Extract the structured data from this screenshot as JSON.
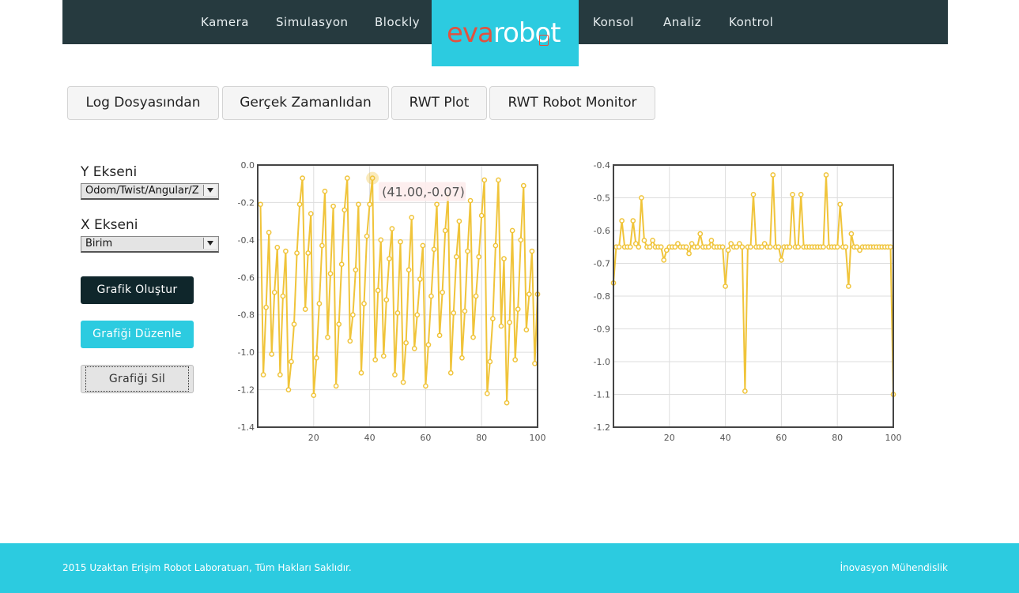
{
  "nav": {
    "items": [
      {
        "label": "Kamera"
      },
      {
        "label": "Simulasyon"
      },
      {
        "label": "Blockly"
      },
      {
        "label": "Konsol"
      },
      {
        "label": "Analiz"
      },
      {
        "label": "Kontrol"
      }
    ],
    "logo": {
      "part1": "eva",
      "part2": "robot"
    }
  },
  "tabs": [
    {
      "label": "Log Dosyasından"
    },
    {
      "label": "Gerçek Zamanlıdan"
    },
    {
      "label": "RWT Plot"
    },
    {
      "label": "RWT Robot Monitor"
    }
  ],
  "sidebar": {
    "y_label": "Y Ekseni",
    "y_value": "Odom/Twist/Angular/Z",
    "x_label": "X Ekseni",
    "x_value": "Birim",
    "create_btn": "Grafik Oluştur",
    "edit_btn": "Grafiği Düzenle",
    "delete_btn": "Grafiği Sil"
  },
  "colors": {
    "accent": "#2ccbe0",
    "nav_bg": "#263a3f",
    "series": "#f0c43a"
  },
  "chart_data": [
    {
      "type": "line",
      "xlim": [
        0,
        100
      ],
      "ylim": [
        -1.4,
        0.0
      ],
      "xticks": [
        20,
        40,
        60,
        80,
        100
      ],
      "yticks": [
        0.0,
        -0.2,
        -0.4,
        -0.6,
        -0.8,
        -1.0,
        -1.2,
        -1.4
      ],
      "grid": true,
      "tooltip": {
        "text": "(41.00,-0.07)",
        "x": 41,
        "y": -0.07
      },
      "x": [
        1,
        2,
        3,
        4,
        5,
        6,
        7,
        8,
        9,
        10,
        11,
        12,
        13,
        14,
        15,
        16,
        17,
        18,
        19,
        20,
        21,
        22,
        23,
        24,
        25,
        26,
        27,
        28,
        29,
        30,
        31,
        32,
        33,
        34,
        35,
        36,
        37,
        38,
        39,
        40,
        41,
        42,
        43,
        44,
        45,
        46,
        47,
        48,
        49,
        50,
        51,
        52,
        53,
        54,
        55,
        56,
        57,
        58,
        59,
        60,
        61,
        62,
        63,
        64,
        65,
        66,
        67,
        68,
        69,
        70,
        71,
        72,
        73,
        74,
        75,
        76,
        77,
        78,
        79,
        80,
        81,
        82,
        83,
        84,
        85,
        86,
        87,
        88,
        89,
        90,
        91,
        92,
        93,
        94,
        95,
        96,
        97,
        98,
        99,
        100
      ],
      "values": [
        -0.21,
        -1.12,
        -0.76,
        -0.36,
        -1.01,
        -0.68,
        -0.44,
        -1.12,
        -0.7,
        -0.46,
        -1.2,
        -1.05,
        -0.85,
        -0.47,
        -0.21,
        -0.07,
        -0.77,
        -0.47,
        -0.26,
        -1.23,
        -1.03,
        -0.74,
        -0.43,
        -0.14,
        -0.92,
        -0.58,
        -0.22,
        -1.18,
        -0.85,
        -0.53,
        -0.24,
        -0.07,
        -0.94,
        -0.8,
        -0.56,
        -0.21,
        -1.11,
        -0.74,
        -0.38,
        -0.21,
        -0.07,
        -1.04,
        -0.67,
        -0.4,
        -1.02,
        -0.72,
        -0.5,
        -0.34,
        -1.12,
        -0.79,
        -0.41,
        -1.16,
        -0.95,
        -0.56,
        -0.28,
        -0.98,
        -0.8,
        -0.61,
        -0.43,
        -1.18,
        -0.96,
        -0.7,
        -0.45,
        -0.21,
        -0.91,
        -0.68,
        -0.35,
        -0.16,
        -1.11,
        -0.79,
        -0.49,
        -0.3,
        -1.03,
        -0.78,
        -0.46,
        -0.19,
        -0.92,
        -0.7,
        -0.49,
        -0.27,
        -0.08,
        -1.22,
        -1.05,
        -0.82,
        -0.43,
        -0.08,
        -0.86,
        -0.5,
        -1.27,
        -0.84,
        -0.35,
        -1.04,
        -0.77,
        -0.4,
        -0.11,
        -0.88,
        -0.69,
        -0.46,
        -1.06,
        -0.69
      ]
    },
    {
      "type": "line",
      "xlim": [
        0,
        100
      ],
      "ylim": [
        -1.2,
        -0.4
      ],
      "xticks": [
        20,
        40,
        60,
        80,
        100
      ],
      "yticks": [
        -0.4,
        -0.5,
        -0.6,
        -0.7,
        -0.8,
        -0.9,
        -1.0,
        -1.1,
        -1.2
      ],
      "grid": true,
      "x": [
        0,
        1,
        2,
        3,
        4,
        5,
        6,
        7,
        8,
        9,
        10,
        11,
        12,
        13,
        14,
        15,
        16,
        17,
        18,
        19,
        20,
        21,
        22,
        23,
        24,
        25,
        26,
        27,
        28,
        29,
        30,
        31,
        32,
        33,
        34,
        35,
        36,
        37,
        38,
        39,
        40,
        41,
        42,
        43,
        44,
        45,
        46,
        47,
        48,
        49,
        50,
        51,
        52,
        53,
        54,
        55,
        56,
        57,
        58,
        59,
        60,
        61,
        62,
        63,
        64,
        65,
        66,
        67,
        68,
        69,
        70,
        71,
        72,
        73,
        74,
        75,
        76,
        77,
        78,
        79,
        80,
        81,
        82,
        83,
        84,
        85,
        86,
        87,
        88,
        89,
        90,
        91,
        92,
        93,
        94,
        95,
        96,
        97,
        98,
        99,
        100
      ],
      "values": [
        -0.76,
        -0.65,
        -0.65,
        -0.57,
        -0.65,
        -0.65,
        -0.65,
        -0.57,
        -0.64,
        -0.65,
        -0.5,
        -0.63,
        -0.65,
        -0.65,
        -0.63,
        -0.65,
        -0.65,
        -0.65,
        -0.69,
        -0.66,
        -0.65,
        -0.65,
        -0.65,
        -0.64,
        -0.65,
        -0.65,
        -0.65,
        -0.67,
        -0.64,
        -0.65,
        -0.65,
        -0.61,
        -0.65,
        -0.65,
        -0.65,
        -0.63,
        -0.65,
        -0.65,
        -0.65,
        -0.65,
        -0.77,
        -0.66,
        -0.64,
        -0.65,
        -0.65,
        -0.64,
        -0.65,
        -1.09,
        -0.65,
        -0.65,
        -0.49,
        -0.65,
        -0.65,
        -0.65,
        -0.64,
        -0.65,
        -0.65,
        -0.43,
        -0.65,
        -0.65,
        -0.69,
        -0.65,
        -0.65,
        -0.65,
        -0.49,
        -0.65,
        -0.65,
        -0.49,
        -0.65,
        -0.65,
        -0.65,
        -0.65,
        -0.65,
        -0.65,
        -0.65,
        -0.65,
        -0.43,
        -0.65,
        -0.65,
        -0.65,
        -0.65,
        -0.52,
        -0.65,
        -0.65,
        -0.77,
        -0.61,
        -0.65,
        -0.65,
        -0.66,
        -0.65,
        -0.65,
        -0.65,
        -0.65,
        -0.65,
        -0.65,
        -0.65,
        -0.65,
        -0.65,
        -0.65,
        -0.65,
        -1.1
      ]
    }
  ],
  "footer": {
    "left": "2015 Uzaktan Erişim Robot Laboratuarı, Tüm Hakları Saklıdır.",
    "right": "İnovasyon Mühendislik"
  }
}
